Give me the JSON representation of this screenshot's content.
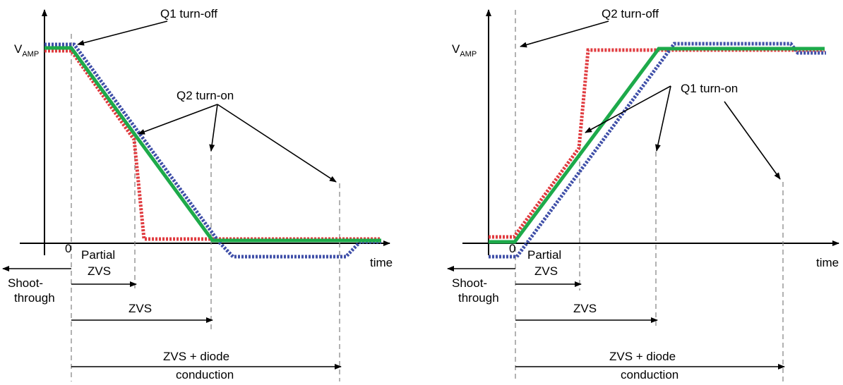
{
  "left": {
    "y_label": "V",
    "y_label_sub": "AMP",
    "origin_label": "0",
    "x_label": "time",
    "top_callout": "Q1 turn-off",
    "mid_callout": "Q2 turn-on",
    "partial_zvs_line1": "Partial",
    "partial_zvs_line2": "ZVS",
    "zvs": "ZVS",
    "zvs_diode_line1": "ZVS + diode",
    "zvs_diode_line2": "conduction",
    "shoot_line1": "Shoot-",
    "shoot_line2": "through"
  },
  "right": {
    "y_label": "V",
    "y_label_sub": "AMP",
    "origin_label": "0",
    "x_label": "time",
    "top_callout": "Q2 turn-off",
    "mid_callout": "Q1 turn-on",
    "partial_zvs_line1": "Partial",
    "partial_zvs_line2": "ZVS",
    "zvs": "ZVS",
    "zvs_diode_line1": "ZVS + diode",
    "zvs_diode_line2": "conduction",
    "shoot_line1": "Shoot-",
    "shoot_line2": "through"
  },
  "colors": {
    "red_trace": "#e03a3e",
    "blue_trace": "#3f4fa8",
    "green_trace": "#1daa4a"
  }
}
